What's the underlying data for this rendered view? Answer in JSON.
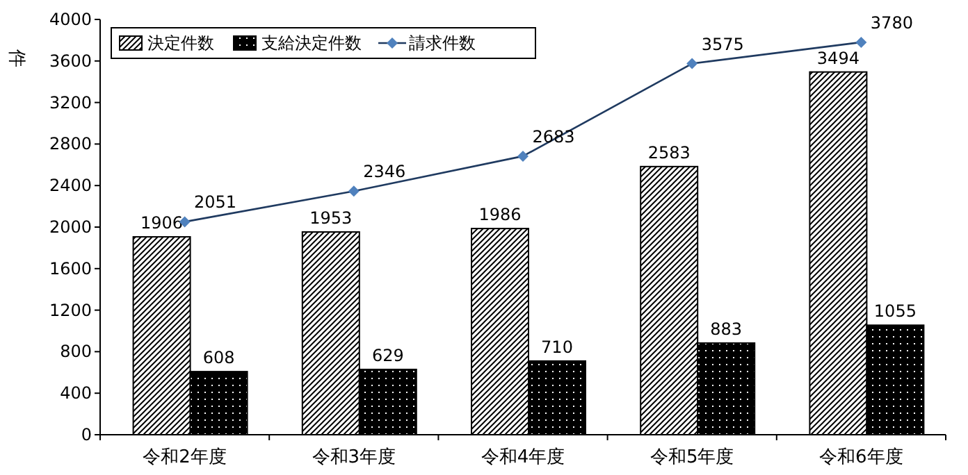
{
  "chart_data": {
    "type": "bar",
    "ylabel": "件",
    "categories": [
      "令和2年度",
      "令和3年度",
      "令和4年度",
      "令和5年度",
      "令和6年度"
    ],
    "series": [
      {
        "name": "決定件数",
        "color": "#000000",
        "values": [
          1906,
          1953,
          1986,
          2583,
          3494
        ]
      },
      {
        "name": "支給決定件数",
        "color": "#000000",
        "values": [
          608,
          629,
          710,
          883,
          1055
        ]
      },
      {
        "name": "請求件数",
        "type": "line",
        "color": "#1f3a60",
        "values": [
          2051,
          2346,
          2683,
          3575,
          3780
        ]
      }
    ],
    "ylim": [
      0,
      4000
    ],
    "yticks": [
      0,
      400,
      800,
      1200,
      1600,
      2000,
      2400,
      2800,
      3200,
      3600,
      4000
    ],
    "data_labels": true,
    "legend": "top left",
    "marker": "diamond",
    "grid": false
  }
}
